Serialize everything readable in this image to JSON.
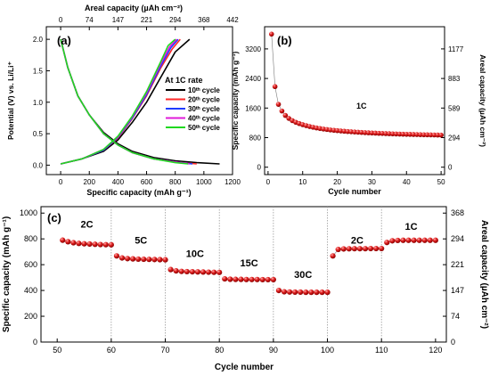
{
  "colors": {
    "black": "#000000",
    "red": "#ff2a2a",
    "blue": "#1f3cff",
    "magenta": "#e01bd9",
    "green": "#1fd81f",
    "marker": "#e02020",
    "grid": "#9a9a9a"
  },
  "chart_data": [
    {
      "type": "line",
      "panel_label": "(a)",
      "xlabel": "Specific capacity (mAh g⁻¹)",
      "ylabel": "Potential (V) vs. Li/Li⁺",
      "top_xlabel": "Areal capacity (µAh cm⁻²)",
      "xlim": [
        -100,
        1200
      ],
      "ylim": [
        -0.15,
        2.2
      ],
      "x_ticks": [
        "0",
        "200",
        "400",
        "600",
        "800",
        "1000",
        "1200"
      ],
      "y_ticks": [
        "0.0",
        "0.5",
        "1.0",
        "1.5",
        "2.0"
      ],
      "top_ticks": [
        "0",
        "74",
        "147",
        "221",
        "294",
        "368",
        "442"
      ],
      "legend_title": "At 1C rate",
      "legend_entries": [
        "10ᵗʰ cycle",
        "20ᵗʰ cycle",
        "30ᵗʰ cycle",
        "40ᵗʰ cycle",
        "50ᵗʰ cycle"
      ],
      "series": [
        {
          "name": "10th cycle",
          "color": "#000000",
          "discharge": {
            "x": [
              0,
              50,
              120,
              200,
              300,
              400,
              500,
              650,
              800,
              950,
              1110
            ],
            "y": [
              2.0,
              1.55,
              1.1,
              0.8,
              0.52,
              0.34,
              0.22,
              0.12,
              0.07,
              0.04,
              0.02
            ]
          },
          "charge": {
            "x": [
              0,
              150,
              300,
              400,
              500,
              600,
              700,
              800,
              900
            ],
            "y": [
              0.02,
              0.1,
              0.22,
              0.4,
              0.68,
              1.0,
              1.4,
              1.8,
              2.0
            ]
          }
        },
        {
          "name": "20th cycle",
          "color": "#ff2a2a",
          "discharge": {
            "x": [
              0,
              50,
              120,
              200,
              300,
              400,
              500,
              650,
              800,
              950
            ],
            "y": [
              2.0,
              1.55,
              1.1,
              0.8,
              0.5,
              0.32,
              0.2,
              0.1,
              0.05,
              0.02
            ]
          },
          "charge": {
            "x": [
              0,
              150,
              300,
              400,
              500,
              600,
              700,
              780,
              835
            ],
            "y": [
              0.02,
              0.1,
              0.24,
              0.43,
              0.74,
              1.1,
              1.55,
              1.85,
              2.0
            ]
          }
        },
        {
          "name": "30th cycle",
          "color": "#1f3cff",
          "discharge": {
            "x": [
              0,
              50,
              120,
              200,
              300,
              400,
              500,
              650,
              800,
              920
            ],
            "y": [
              2.0,
              1.55,
              1.1,
              0.8,
              0.5,
              0.32,
              0.2,
              0.1,
              0.05,
              0.02
            ]
          },
          "charge": {
            "x": [
              0,
              150,
              300,
              400,
              500,
              600,
              700,
              770,
              820
            ],
            "y": [
              0.02,
              0.1,
              0.24,
              0.44,
              0.75,
              1.12,
              1.58,
              1.87,
              2.0
            ]
          }
        },
        {
          "name": "40th cycle",
          "color": "#e01bd9",
          "discharge": {
            "x": [
              0,
              50,
              120,
              200,
              300,
              400,
              500,
              650,
              800,
              900
            ],
            "y": [
              2.0,
              1.55,
              1.1,
              0.8,
              0.5,
              0.32,
              0.2,
              0.1,
              0.05,
              0.02
            ]
          },
          "charge": {
            "x": [
              0,
              150,
              300,
              400,
              500,
              600,
              700,
              760,
              810
            ],
            "y": [
              0.02,
              0.1,
              0.25,
              0.45,
              0.77,
              1.15,
              1.62,
              1.88,
              2.0
            ]
          }
        },
        {
          "name": "50th cycle",
          "color": "#1fd81f",
          "discharge": {
            "x": [
              0,
              50,
              120,
              200,
              300,
              400,
              500,
              650,
              800,
              890
            ],
            "y": [
              2.0,
              1.55,
              1.1,
              0.8,
              0.5,
              0.32,
              0.2,
              0.1,
              0.04,
              0.02
            ]
          },
          "charge": {
            "x": [
              0,
              150,
              300,
              400,
              500,
              600,
              700,
              750,
              800
            ],
            "y": [
              0.02,
              0.1,
              0.25,
              0.46,
              0.78,
              1.17,
              1.65,
              1.9,
              2.0
            ]
          }
        }
      ]
    },
    {
      "type": "scatter",
      "panel_label": "(b)",
      "xlabel": "Cycle number",
      "ylabel": "Specific capacity (mAh g⁻¹)",
      "y2label": "Areal capacity (µAh cm⁻²)",
      "annotation": "1C",
      "xlim": [
        -1,
        51
      ],
      "ylim": [
        -200,
        3800
      ],
      "x_ticks": [
        "0",
        "10",
        "20",
        "30",
        "40",
        "50"
      ],
      "y_ticks": [
        "0",
        "800",
        "1600",
        "2400",
        "3200"
      ],
      "y2_ticks": [
        "0",
        "294",
        "589",
        "883",
        "1177"
      ],
      "x": [
        1,
        2,
        3,
        4,
        5,
        6,
        7,
        8,
        9,
        10,
        11,
        12,
        13,
        14,
        15,
        16,
        17,
        18,
        19,
        20,
        21,
        22,
        23,
        24,
        25,
        26,
        27,
        28,
        29,
        30,
        31,
        32,
        33,
        34,
        35,
        36,
        37,
        38,
        39,
        40,
        41,
        42,
        43,
        44,
        45,
        46,
        47,
        48,
        49,
        50
      ],
      "y": [
        3600,
        2180,
        1700,
        1520,
        1400,
        1320,
        1260,
        1215,
        1180,
        1150,
        1125,
        1100,
        1080,
        1062,
        1046,
        1032,
        1020,
        1008,
        998,
        989,
        980,
        972,
        965,
        958,
        952,
        946,
        940,
        935,
        930,
        926,
        921,
        917,
        913,
        909,
        906,
        902,
        899,
        896,
        893,
        890,
        888,
        885,
        883,
        880,
        878,
        876,
        874,
        872,
        870,
        868
      ]
    },
    {
      "type": "scatter",
      "panel_label": "(c)",
      "xlabel": "Cycle number",
      "ylabel": "Specific capacity (mAh g⁻¹)",
      "y2label": "Areal capacity (µAh cm⁻²)",
      "xlim": [
        47,
        122
      ],
      "ylim": [
        0,
        1050
      ],
      "x_ticks": [
        "50",
        "60",
        "70",
        "80",
        "90",
        "100",
        "110",
        "120"
      ],
      "y_ticks": [
        "0",
        "200",
        "400",
        "600",
        "800",
        "1000"
      ],
      "y2_ticks": [
        "0",
        "74",
        "147",
        "221",
        "294",
        "368"
      ],
      "dividers_at": [
        60,
        70,
        80,
        90,
        100,
        110
      ],
      "rate_labels": [
        "2C",
        "5C",
        "10C",
        "15C",
        "30C",
        "2C",
        "1C"
      ],
      "segments": [
        {
          "label": "2C",
          "x": [
            51,
            52,
            53,
            54,
            55,
            56,
            57,
            58,
            59,
            60
          ],
          "y": [
            790,
            778,
            770,
            765,
            762,
            760,
            758,
            756,
            755,
            754
          ]
        },
        {
          "label": "5C",
          "x": [
            61,
            62,
            63,
            64,
            65,
            66,
            67,
            68,
            69,
            70
          ],
          "y": [
            668,
            652,
            647,
            645,
            643,
            642,
            641,
            640,
            639,
            638
          ]
        },
        {
          "label": "10C",
          "x": [
            71,
            72,
            73,
            74,
            75,
            76,
            77,
            78,
            79,
            80
          ],
          "y": [
            562,
            552,
            548,
            546,
            545,
            544,
            543,
            542,
            541,
            540
          ]
        },
        {
          "label": "15C",
          "x": [
            81,
            82,
            83,
            84,
            85,
            86,
            87,
            88,
            89,
            90
          ],
          "y": [
            490,
            487,
            486,
            486,
            485,
            485,
            485,
            484,
            484,
            484
          ]
        },
        {
          "label": "30C",
          "x": [
            91,
            92,
            93,
            94,
            95,
            96,
            97,
            98,
            99,
            100
          ],
          "y": [
            400,
            390,
            388,
            387,
            387,
            386,
            386,
            386,
            386,
            386
          ]
        },
        {
          "label": "2C",
          "x": [
            101,
            102,
            103,
            104,
            105,
            106,
            107,
            108,
            109,
            110
          ],
          "y": [
            668,
            718,
            722,
            723,
            724,
            724,
            724,
            725,
            725,
            725
          ]
        },
        {
          "label": "1C",
          "x": [
            111,
            112,
            113,
            114,
            115,
            116,
            117,
            118,
            119,
            120
          ],
          "y": [
            772,
            785,
            788,
            789,
            789,
            789,
            789,
            789,
            789,
            789
          ]
        }
      ]
    }
  ]
}
